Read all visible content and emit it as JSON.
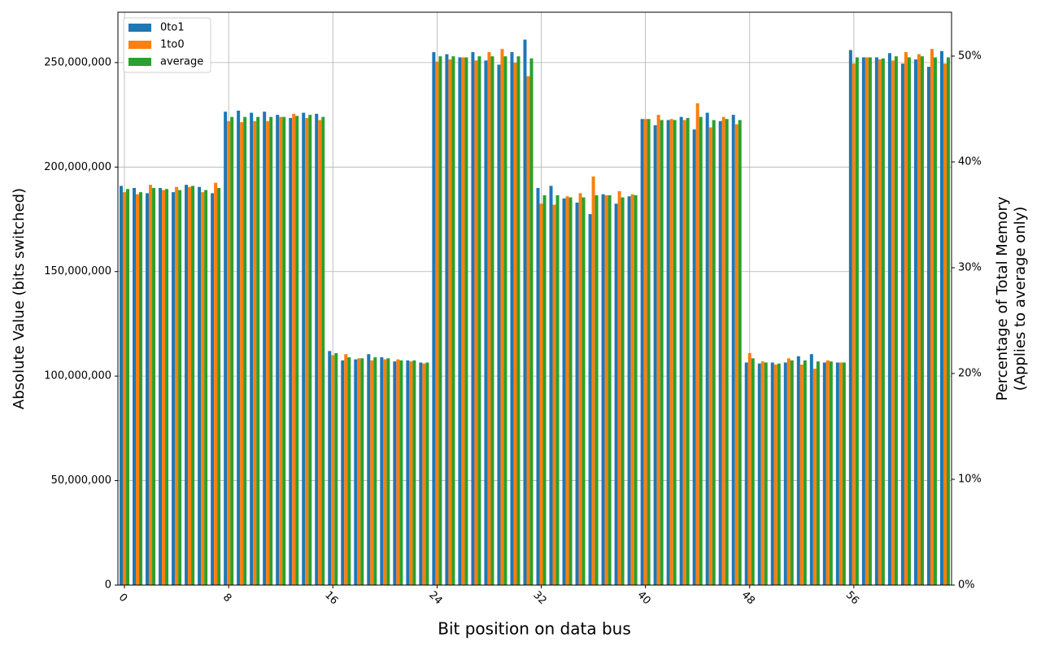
{
  "chart_data": {
    "type": "bar",
    "xlabel": "Bit position on data bus",
    "ylabel": "Absolute Value (bits switched)",
    "y2label": [
      "Percentage of Total Memory",
      "(Applies to average only)"
    ],
    "x": [
      0,
      1,
      2,
      3,
      4,
      5,
      6,
      7,
      8,
      9,
      10,
      11,
      12,
      13,
      14,
      15,
      16,
      17,
      18,
      19,
      20,
      21,
      22,
      23,
      24,
      25,
      26,
      27,
      28,
      29,
      30,
      31,
      32,
      33,
      34,
      35,
      36,
      37,
      38,
      39,
      40,
      41,
      42,
      43,
      44,
      45,
      46,
      47,
      48,
      49,
      50,
      51,
      52,
      53,
      54,
      55,
      56,
      57,
      58,
      59,
      60,
      61,
      62,
      63
    ],
    "xlim": [
      -0.5,
      63.5
    ],
    "xticks": [
      0,
      8,
      16,
      24,
      32,
      40,
      48,
      56
    ],
    "ylim": [
      0,
      274100000
    ],
    "yticks": [
      0,
      {
        "value": 50000000,
        "label": "50,000,000"
      },
      {
        "value": 100000000,
        "label": "100,000,000"
      },
      {
        "value": 150000000,
        "label": "150,000,000"
      },
      {
        "value": 200000000,
        "label": "200,000,000"
      },
      {
        "value": 250000000,
        "label": "250,000,000"
      }
    ],
    "y2lim": [
      0,
      54.15
    ],
    "y2ticks": [
      {
        "value": 0,
        "label": "0%"
      },
      {
        "value": 10,
        "label": "10%"
      },
      {
        "value": 20,
        "label": "20%"
      },
      {
        "value": 30,
        "label": "30%"
      },
      {
        "value": 40,
        "label": "40%"
      },
      {
        "value": 50,
        "label": "50%"
      }
    ],
    "grid": true,
    "legend": "upper-left",
    "series": [
      {
        "name": "0to1",
        "color": "#1f77b4",
        "values": [
          191000000,
          190000000,
          187500000,
          190000000,
          188000000,
          191500000,
          190500000,
          187500000,
          226500000,
          227000000,
          226000000,
          226500000,
          225000000,
          223500000,
          226000000,
          225500000,
          112000000,
          107500000,
          108000000,
          110500000,
          109000000,
          107000000,
          107500000,
          106500000,
          255000000,
          254000000,
          252500000,
          255000000,
          251000000,
          249000000,
          255000000,
          261000000,
          190000000,
          191000000,
          185000000,
          183000000,
          177500000,
          187000000,
          182500000,
          186000000,
          223000000,
          220000000,
          222500000,
          224000000,
          218000000,
          226000000,
          222000000,
          225000000,
          106500000,
          106000000,
          106500000,
          106500000,
          109500000,
          110500000,
          106500000,
          106500000,
          256000000,
          252500000,
          252500000,
          254500000,
          249500000,
          251500000,
          248000000,
          255500000
        ]
      },
      {
        "name": "1to0",
        "color": "#ff7f0e",
        "values": [
          188000000,
          187000000,
          191500000,
          189000000,
          190500000,
          190500000,
          188000000,
          192500000,
          222000000,
          221500000,
          222000000,
          222000000,
          224000000,
          225500000,
          223500000,
          222500000,
          110000000,
          110500000,
          108500000,
          107500000,
          108000000,
          108000000,
          107000000,
          106000000,
          250500000,
          251500000,
          252500000,
          251000000,
          255000000,
          256500000,
          250000000,
          243500000,
          182500000,
          182000000,
          186000000,
          187500000,
          195500000,
          186500000,
          188500000,
          187000000,
          223000000,
          225000000,
          223000000,
          222500000,
          230500000,
          219000000,
          224000000,
          220500000,
          111000000,
          107000000,
          105500000,
          108500000,
          105500000,
          103500000,
          107500000,
          106500000,
          249500000,
          252500000,
          251500000,
          251000000,
          255000000,
          254000000,
          256500000,
          249500000
        ]
      },
      {
        "name": "average",
        "color": "#2ca02c",
        "values": [
          189500000,
          188000000,
          190000000,
          189500000,
          189000000,
          191000000,
          189000000,
          190000000,
          224000000,
          224000000,
          224000000,
          224000000,
          224000000,
          224500000,
          225000000,
          224000000,
          111000000,
          109000000,
          108500000,
          109000000,
          108500000,
          107500000,
          107500000,
          106500000,
          253000000,
          253000000,
          252500000,
          253000000,
          253000000,
          253000000,
          253000000,
          252000000,
          186500000,
          186500000,
          185500000,
          185500000,
          186500000,
          186500000,
          185500000,
          186500000,
          223000000,
          222500000,
          222500000,
          223500000,
          224000000,
          222500000,
          223000000,
          222500000,
          108500000,
          106500000,
          106000000,
          107500000,
          107500000,
          107000000,
          107000000,
          106500000,
          252500000,
          252500000,
          252000000,
          253000000,
          252500000,
          253000000,
          252500000,
          252500000
        ]
      }
    ]
  }
}
